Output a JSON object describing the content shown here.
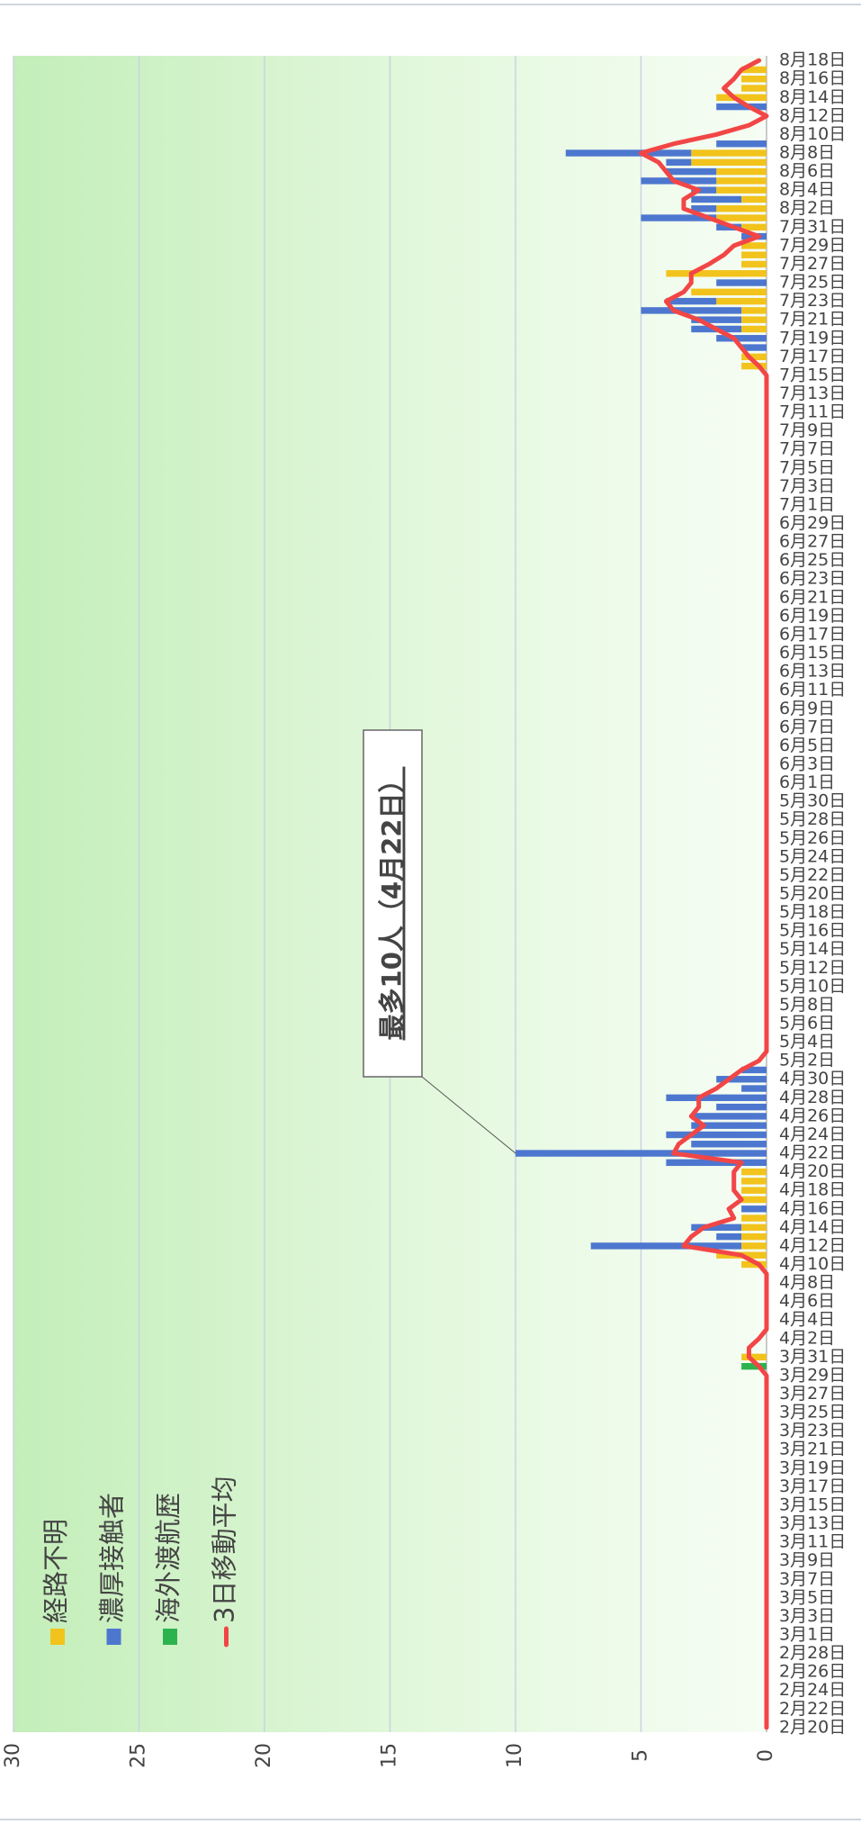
{
  "chart_data": {
    "type": "bar",
    "stacked": true,
    "grid": true,
    "legend": "upper left",
    "annotation": "最多10人（4月22日）",
    "ylim": [
      0,
      30
    ],
    "yticks": [
      0,
      5,
      10,
      15,
      20,
      25,
      30
    ],
    "categories": [
      "2月20日",
      null,
      "2月22日",
      null,
      "2月24日",
      null,
      "2月26日",
      null,
      "2月28日",
      null,
      "3月1日",
      null,
      "3月3日",
      null,
      "3月5日",
      null,
      "3月7日",
      null,
      "3月9日",
      null,
      "3月11日",
      null,
      "3月13日",
      null,
      "3月15日",
      null,
      "3月17日",
      null,
      "3月19日",
      null,
      "3月21日",
      null,
      "3月23日",
      null,
      "3月25日",
      null,
      "3月27日",
      null,
      "3月29日",
      null,
      "3月31日",
      null,
      "4月2日",
      null,
      "4月4日",
      null,
      "4月6日",
      null,
      "4月8日",
      null,
      "4月10日",
      null,
      "4月12日",
      null,
      "4月14日",
      null,
      "4月16日",
      null,
      "4月18日",
      null,
      "4月20日",
      null,
      "4月22日",
      null,
      "4月24日",
      null,
      "4月26日",
      null,
      "4月28日",
      null,
      "4月30日",
      null,
      "5月2日",
      null,
      "5月4日",
      null,
      "5月6日",
      null,
      "5月8日",
      null,
      "5月10日",
      null,
      "5月12日",
      null,
      "5月14日",
      null,
      "5月16日",
      null,
      "5月18日",
      null,
      "5月20日",
      null,
      "5月22日",
      null,
      "5月24日",
      null,
      "5月26日",
      null,
      "5月28日",
      null,
      "5月30日",
      null,
      "6月1日",
      null,
      "6月3日",
      null,
      "6月5日",
      null,
      "6月7日",
      null,
      "6月9日",
      null,
      "6月11日",
      null,
      "6月13日",
      null,
      "6月15日",
      null,
      "6月17日",
      null,
      "6月19日",
      null,
      "6月21日",
      null,
      "6月23日",
      null,
      "6月25日",
      null,
      "6月27日",
      null,
      "6月29日",
      null,
      "7月1日",
      null,
      "7月3日",
      null,
      "7月5日",
      null,
      "7月7日",
      null,
      "7月9日",
      null,
      "7月11日",
      null,
      "7月13日",
      null,
      "7月15日",
      null,
      "7月17日",
      null,
      "7月19日",
      null,
      "7月21日",
      null,
      "7月23日",
      null,
      "7月25日",
      null,
      "7月27日",
      null,
      "7月29日",
      null,
      "7月31日",
      null,
      "8月2日",
      null,
      "8月4日",
      null,
      "8月6日",
      null,
      "8月8日",
      null,
      "8月10日",
      null,
      "8月12日",
      null,
      "8月14日",
      null,
      "8月16日",
      null,
      "8月18日"
    ],
    "series": [
      {
        "name": "経路不明",
        "color": "#f2c31c",
        "values": [
          0,
          0,
          0,
          0,
          0,
          0,
          0,
          0,
          0,
          0,
          0,
          0,
          0,
          0,
          0,
          0,
          0,
          0,
          0,
          0,
          0,
          0,
          0,
          0,
          0,
          0,
          0,
          0,
          0,
          0,
          0,
          0,
          0,
          0,
          0,
          0,
          0,
          0,
          0,
          0,
          1,
          0,
          0,
          0,
          0,
          0,
          0,
          0,
          0,
          0,
          1,
          2,
          1,
          1,
          1,
          1,
          0,
          1,
          1,
          1,
          1,
          0,
          0,
          0,
          0,
          0,
          0,
          0,
          0,
          0,
          0,
          0,
          0,
          0,
          0,
          0,
          0,
          0,
          0,
          0,
          0,
          0,
          0,
          0,
          0,
          0,
          0,
          0,
          0,
          0,
          0,
          0,
          0,
          0,
          0,
          0,
          0,
          0,
          0,
          0,
          0,
          0,
          0,
          0,
          0,
          0,
          0,
          0,
          0,
          0,
          0,
          0,
          0,
          0,
          0,
          0,
          0,
          0,
          0,
          0,
          0,
          0,
          0,
          0,
          0,
          0,
          0,
          0,
          0,
          0,
          0,
          0,
          0,
          0,
          0,
          0,
          0,
          0,
          0,
          0,
          0,
          0,
          0,
          0,
          0,
          0,
          0,
          1,
          1,
          0,
          0,
          1,
          1,
          1,
          2,
          3,
          0,
          4,
          1,
          1,
          1,
          0,
          1,
          2,
          2,
          1,
          2,
          2,
          2,
          3,
          3,
          0,
          0,
          0,
          0,
          0,
          2,
          1,
          1,
          1,
          0
        ]
      },
      {
        "name": "濃厚接触者",
        "color": "#4d77cf",
        "values": [
          0,
          0,
          0,
          0,
          0,
          0,
          0,
          0,
          0,
          0,
          0,
          0,
          0,
          0,
          0,
          0,
          0,
          0,
          0,
          0,
          0,
          0,
          0,
          0,
          0,
          0,
          0,
          0,
          0,
          0,
          0,
          0,
          0,
          0,
          0,
          0,
          0,
          0,
          0,
          0,
          0,
          0,
          0,
          0,
          0,
          0,
          0,
          0,
          0,
          0,
          0,
          0,
          6,
          1,
          2,
          0,
          1,
          0,
          0,
          0,
          0,
          4,
          10,
          3,
          4,
          3,
          3,
          2,
          4,
          1,
          2,
          1,
          0,
          0,
          0,
          0,
          0,
          0,
          0,
          0,
          0,
          0,
          0,
          0,
          0,
          0,
          0,
          0,
          0,
          0,
          0,
          0,
          0,
          0,
          0,
          0,
          0,
          0,
          0,
          0,
          0,
          0,
          0,
          0,
          0,
          0,
          0,
          0,
          0,
          0,
          0,
          0,
          0,
          0,
          0,
          0,
          0,
          0,
          0,
          0,
          0,
          0,
          0,
          0,
          0,
          0,
          0,
          0,
          0,
          0,
          0,
          0,
          0,
          0,
          0,
          0,
          0,
          0,
          0,
          0,
          0,
          0,
          0,
          0,
          0,
          0,
          0,
          0,
          0,
          1,
          2,
          2,
          2,
          4,
          2,
          0,
          2,
          0,
          0,
          0,
          0,
          1,
          1,
          3,
          1,
          2,
          1,
          3,
          2,
          1,
          5,
          2,
          0,
          0,
          0,
          2,
          0,
          0,
          0,
          0,
          0
        ]
      },
      {
        "name": "海外渡航歴",
        "color": "#2db34e",
        "values": [
          0,
          0,
          0,
          0,
          0,
          0,
          0,
          0,
          0,
          0,
          0,
          0,
          0,
          0,
          0,
          0,
          0,
          0,
          0,
          0,
          0,
          0,
          0,
          0,
          0,
          0,
          0,
          0,
          0,
          0,
          0,
          0,
          0,
          0,
          0,
          0,
          0,
          0,
          0,
          1,
          0,
          0,
          0,
          0,
          0,
          0,
          0,
          0,
          0,
          0,
          0,
          0,
          0,
          0,
          0,
          0,
          0,
          0,
          0,
          0,
          0,
          0,
          0,
          0,
          0,
          0,
          0,
          0,
          0,
          0,
          0,
          0,
          0,
          0,
          0,
          0,
          0,
          0,
          0,
          0,
          0,
          0,
          0,
          0,
          0,
          0,
          0,
          0,
          0,
          0,
          0,
          0,
          0,
          0,
          0,
          0,
          0,
          0,
          0,
          0,
          0,
          0,
          0,
          0,
          0,
          0,
          0,
          0,
          0,
          0,
          0,
          0,
          0,
          0,
          0,
          0,
          0,
          0,
          0,
          0,
          0,
          0,
          0,
          0,
          0,
          0,
          0,
          0,
          0,
          0,
          0,
          0,
          0,
          0,
          0,
          0,
          0,
          0,
          0,
          0,
          0,
          0,
          0,
          0,
          0,
          0,
          0,
          0,
          0,
          0,
          0,
          0,
          0,
          0,
          0,
          0,
          0,
          0,
          0,
          0,
          0,
          0,
          0,
          0,
          0,
          0,
          0,
          0,
          0,
          0,
          0,
          0,
          0,
          0,
          0,
          0,
          0,
          0,
          0,
          0,
          0
        ]
      },
      {
        "name": "3日移動平均",
        "type": "line",
        "color": "#f24646",
        "values": [
          0,
          0,
          0,
          0,
          0,
          0,
          0,
          0,
          0,
          0,
          0,
          0,
          0,
          0,
          0,
          0,
          0,
          0,
          0,
          0,
          0,
          0,
          0,
          0,
          0,
          0,
          0,
          0,
          0,
          0,
          0,
          0,
          0,
          0,
          0,
          0,
          0,
          0,
          0,
          0.3,
          0.7,
          0.7,
          0.3,
          0,
          0,
          0,
          0,
          0,
          0,
          0,
          0.3,
          1,
          3.3,
          3,
          2.5,
          1.3,
          1.5,
          1,
          1.3,
          1.3,
          1.3,
          1,
          3.7,
          3.5,
          3,
          2.5,
          3,
          2.7,
          2.7,
          2,
          1.5,
          1,
          0.3,
          0,
          0,
          0,
          0,
          0,
          0,
          0,
          0,
          0,
          0,
          0,
          0,
          0,
          0,
          0,
          0,
          0,
          0,
          0,
          0,
          0,
          0,
          0,
          0,
          0,
          0,
          0,
          0,
          0,
          0,
          0,
          0,
          0,
          0,
          0,
          0,
          0,
          0,
          0,
          0,
          0,
          0,
          0,
          0,
          0,
          0,
          0,
          0,
          0,
          0,
          0,
          0,
          0,
          0,
          0,
          0,
          0,
          0,
          0,
          0,
          0,
          0,
          0,
          0,
          0,
          0,
          0,
          0,
          0,
          0,
          0,
          0,
          0,
          0,
          0.3,
          0.7,
          1,
          1.3,
          2,
          2.7,
          3.7,
          4,
          3.3,
          3,
          3,
          2.3,
          1.7,
          1.3,
          0.3,
          1.3,
          2.3,
          3.3,
          3.3,
          2.7,
          3.7,
          4,
          4.3,
          5,
          3.7,
          2,
          0.7,
          0,
          0.7,
          1.3,
          1.7,
          1.3,
          1,
          0.3
        ]
      }
    ]
  }
}
